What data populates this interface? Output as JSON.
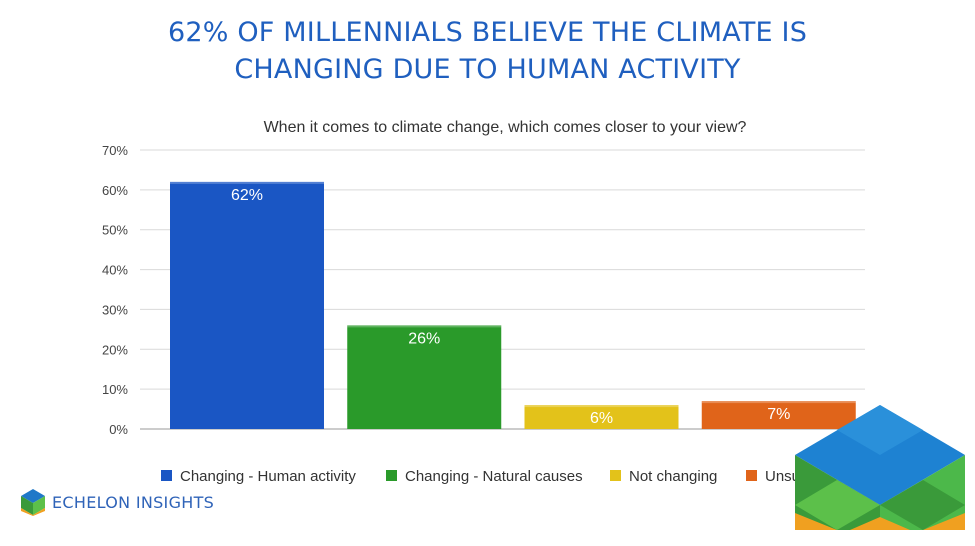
{
  "title": {
    "line1": "62% OF MILLENNIALS BELIEVE THE CLIMATE IS",
    "line2": "CHANGING DUE TO HUMAN ACTIVITY"
  },
  "brand": {
    "name": "ECHELON INSIGHTS",
    "icon": "cube-logo-icon"
  },
  "colors": {
    "title": "#1f5fbf",
    "human": "#1a56c4",
    "natural": "#2a9a2a",
    "notchanging": "#e3c21a",
    "unsure": "#e0641a"
  },
  "chart_data": {
    "type": "bar",
    "title": "When it comes to climate change, which comes closer to your view?",
    "categories": [
      "Changing - Human activity",
      "Changing - Natural causes",
      "Not changing",
      "Unsure"
    ],
    "values": [
      62,
      26,
      6,
      7
    ],
    "data_labels": [
      "62%",
      "26%",
      "6%",
      "7%"
    ],
    "ylim": [
      0,
      70
    ],
    "yticks": [
      0,
      10,
      20,
      30,
      40,
      50,
      60,
      70
    ],
    "ytick_labels": [
      "0%",
      "10%",
      "20%",
      "30%",
      "40%",
      "50%",
      "60%",
      "70%"
    ],
    "legend_position": "bottom",
    "grid": true
  }
}
